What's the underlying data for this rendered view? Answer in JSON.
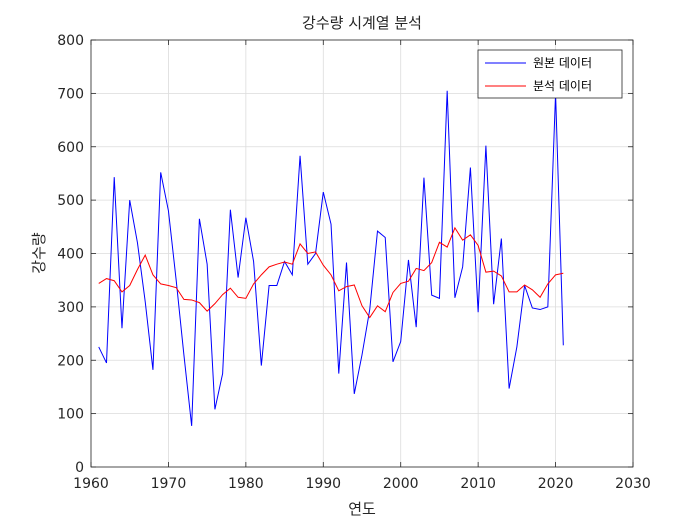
{
  "chart_data": {
    "type": "line",
    "title": "강수량 시계열 분석",
    "xlabel": "연도",
    "ylabel": "강수량",
    "xlim": [
      1960,
      2030
    ],
    "ylim": [
      0,
      800
    ],
    "xticks": [
      1960,
      1970,
      1980,
      1990,
      2000,
      2010,
      2020,
      2030
    ],
    "yticks": [
      0,
      100,
      200,
      300,
      400,
      500,
      600,
      700,
      800
    ],
    "grid": true,
    "legend_position": "top-right",
    "x": [
      1961,
      1962,
      1963,
      1964,
      1965,
      1966,
      1967,
      1968,
      1969,
      1970,
      1971,
      1972,
      1973,
      1974,
      1975,
      1976,
      1977,
      1978,
      1979,
      1980,
      1981,
      1982,
      1983,
      1984,
      1985,
      1986,
      1987,
      1988,
      1989,
      1990,
      1991,
      1992,
      1993,
      1994,
      1995,
      1996,
      1997,
      1998,
      1999,
      2000,
      2001,
      2002,
      2003,
      2004,
      2005,
      2006,
      2007,
      2008,
      2009,
      2010,
      2011,
      2012,
      2013,
      2014,
      2015,
      2016,
      2017,
      2018,
      2019,
      2020,
      2021
    ],
    "series": [
      {
        "name": "원본 데이터",
        "color": "#0000ff",
        "values": [
          225,
          195,
          543,
          260,
          500,
          420,
          310,
          182,
          552,
          480,
          350,
          210,
          77,
          465,
          380,
          108,
          175,
          482,
          355,
          467,
          385,
          190,
          340,
          340,
          385,
          360,
          583,
          380,
          400,
          515,
          455,
          175,
          383,
          137,
          210,
          295,
          442,
          430,
          197,
          235,
          388,
          262,
          542,
          322,
          316,
          705,
          317,
          375,
          561,
          290,
          602,
          305,
          428,
          147,
          225,
          340,
          298,
          295,
          300,
          700,
          228
        ]
      },
      {
        "name": "분석 데이터",
        "color": "#ff0000",
        "values": [
          344,
          353,
          349,
          328,
          340,
          370,
          397,
          360,
          343,
          340,
          336,
          314,
          313,
          308,
          292,
          306,
          323,
          335,
          318,
          316,
          343,
          360,
          375,
          380,
          384,
          380,
          418,
          400,
          403,
          378,
          360,
          330,
          338,
          341,
          302,
          280,
          302,
          291,
          327,
          344,
          348,
          372,
          368,
          383,
          421,
          412,
          448,
          425,
          435,
          415,
          365,
          367,
          358,
          328,
          328,
          341,
          332,
          318,
          343,
          360,
          363
        ]
      }
    ]
  }
}
